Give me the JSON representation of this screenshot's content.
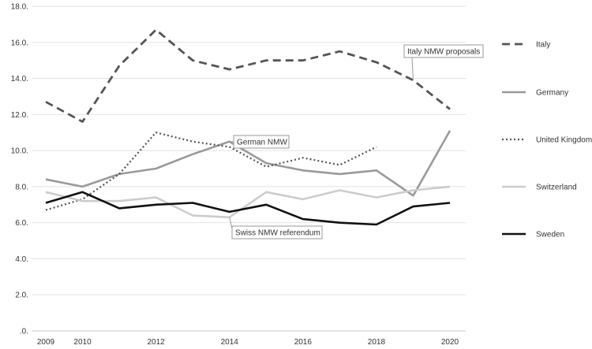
{
  "chart_data": {
    "type": "line",
    "title": "",
    "xlabel": "",
    "ylabel": "",
    "ylim": [
      0,
      18
    ],
    "xlim": [
      2009,
      2021
    ],
    "y_ticks": [
      0,
      2,
      4,
      6,
      8,
      10,
      12,
      14,
      16,
      18
    ],
    "y_tick_labels": [
      ".0.",
      "2.0.",
      "4.0.",
      "6.0.",
      "8.0.",
      "10.0.",
      "12.0.",
      "14.0.",
      "16.0.",
      "18.0."
    ],
    "x_ticks": [
      2009,
      2010,
      2012,
      2014,
      2016,
      2018,
      2020
    ],
    "x_tick_labels": [
      "2009",
      "2010",
      "2012",
      "2014",
      "2016",
      "2018",
      "2020"
    ],
    "grid": "horizontal",
    "legend_position": "right",
    "series": [
      {
        "name": "Italy",
        "color": "#555555",
        "style": "dashed",
        "x": [
          2009,
          2010,
          2011,
          2012,
          2013,
          2014,
          2015,
          2016,
          2017,
          2018,
          2019,
          2020
        ],
        "values": [
          12.7,
          11.6,
          14.7,
          16.7,
          15.0,
          14.5,
          15.0,
          15.0,
          15.5,
          14.9,
          13.9,
          12.3
        ]
      },
      {
        "name": "Germany",
        "color": "#9a9a9a",
        "style": "solid",
        "x": [
          2009,
          2010,
          2011,
          2012,
          2013,
          2014,
          2015,
          2016,
          2017,
          2018,
          2019,
          2020
        ],
        "values": [
          8.4,
          8.0,
          8.7,
          9.0,
          9.8,
          10.5,
          9.3,
          8.9,
          8.7,
          8.9,
          7.5,
          11.1
        ]
      },
      {
        "name": "United Kingdom",
        "color": "#555555",
        "style": "dotted",
        "x": [
          2009,
          2010,
          2011,
          2012,
          2013,
          2014,
          2015,
          2016,
          2017,
          2018
        ],
        "values": [
          6.7,
          7.3,
          8.7,
          11.0,
          10.5,
          10.2,
          9.1,
          9.6,
          9.2,
          10.2
        ]
      },
      {
        "name": "Switzerland",
        "color": "#cccccc",
        "style": "solid",
        "x": [
          2009,
          2010,
          2011,
          2012,
          2013,
          2014,
          2015,
          2016,
          2017,
          2018,
          2019,
          2020
        ],
        "values": [
          7.7,
          7.2,
          7.2,
          7.4,
          6.4,
          6.3,
          7.7,
          7.3,
          7.8,
          7.4,
          7.8,
          8.0
        ]
      },
      {
        "name": "Sweden",
        "color": "#111111",
        "style": "solid",
        "x": [
          2009,
          2010,
          2011,
          2012,
          2013,
          2014,
          2015,
          2016,
          2017,
          2018,
          2019,
          2020
        ],
        "values": [
          7.1,
          7.7,
          6.8,
          7.0,
          7.1,
          6.6,
          7.0,
          6.2,
          6.0,
          5.9,
          6.9,
          7.1
        ]
      }
    ],
    "annotations": [
      {
        "text": "Italy NMW proposals",
        "x": 2019,
        "y": 13.9
      },
      {
        "text": "German NMW",
        "x": 2014,
        "y": 10.5
      },
      {
        "text": "Swiss NMW referendum",
        "x": 2014,
        "y": 6.3
      }
    ]
  }
}
